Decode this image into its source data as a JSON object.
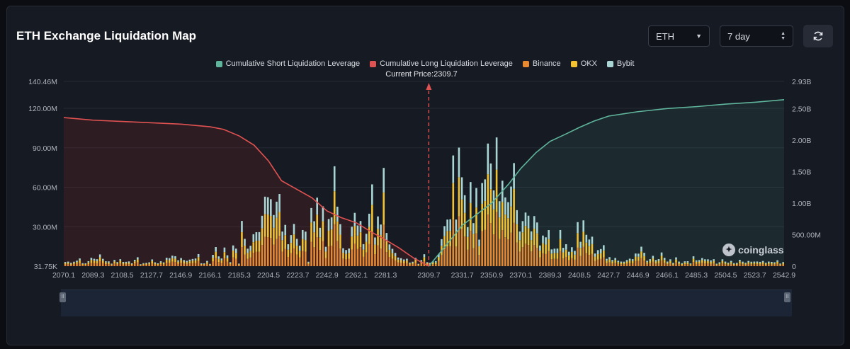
{
  "header": {
    "title": "ETH Exchange Liquidation Map",
    "coin_select": "ETH",
    "range_select": "7 day"
  },
  "brand": {
    "name": "coinglass"
  },
  "icons": {
    "refresh": "refresh-icon",
    "caret": "chevron-down-icon",
    "updown": "updown-arrows-icon"
  },
  "chart_data": {
    "type": "bar",
    "title": "",
    "xlabel": "",
    "ylabel": "",
    "current_price": 2309.7,
    "current_price_label": "Current Price:2309.7",
    "legend_placement": "top-center",
    "grid": true,
    "left_axis": {
      "min": 0,
      "max": 140.46,
      "ticks": [
        "31.75K",
        "30.00M",
        "60.00M",
        "90.00M",
        "120.00M",
        "140.46M"
      ],
      "tick_values": [
        0,
        30,
        60,
        90,
        120,
        140.46
      ]
    },
    "right_axis": {
      "min": 0,
      "max": 2.93,
      "ticks": [
        "0",
        "500.00M",
        "1.00B",
        "1.50B",
        "2.00B",
        "2.50B",
        "2.93B"
      ],
      "tick_values": [
        0,
        0.5,
        1.0,
        1.5,
        2.0,
        2.5,
        2.93
      ]
    },
    "x_range": [
      2070.1,
      2542.9
    ],
    "x_tick_labels": [
      "2070.1",
      "2089.3",
      "2108.5",
      "2127.7",
      "2146.9",
      "2166.1",
      "2185.3",
      "2204.5",
      "2223.7",
      "2242.9",
      "2262.1",
      "2281.3",
      "2309.7",
      "2331.7",
      "2350.9",
      "2370.1",
      "2389.3",
      "2408.5",
      "2427.7",
      "2446.9",
      "2466.1",
      "2485.3",
      "2504.5",
      "2523.7",
      "2542.9"
    ],
    "x_tick_values": [
      2070.1,
      2089.3,
      2108.5,
      2127.7,
      2146.9,
      2166.1,
      2185.3,
      2204.5,
      2223.7,
      2242.9,
      2262.1,
      2281.3,
      2309.7,
      2331.7,
      2350.9,
      2370.1,
      2389.3,
      2408.5,
      2427.7,
      2446.9,
      2466.1,
      2485.3,
      2504.5,
      2523.7,
      2542.9
    ],
    "series": [
      {
        "name": "Cumulative Short Liquidation Leverage",
        "color": "#5fb49c",
        "kind": "line",
        "axis": "right",
        "points": [
          [
            2309.7,
            0
          ],
          [
            2320,
            0.3
          ],
          [
            2331.7,
            0.65
          ],
          [
            2350.9,
            1.0
          ],
          [
            2362,
            1.3
          ],
          [
            2370.1,
            1.55
          ],
          [
            2380,
            1.8
          ],
          [
            2389.3,
            1.98
          ],
          [
            2400,
            2.1
          ],
          [
            2408.5,
            2.2
          ],
          [
            2418,
            2.3
          ],
          [
            2427.7,
            2.38
          ],
          [
            2446.9,
            2.45
          ],
          [
            2466.1,
            2.5
          ],
          [
            2485.3,
            2.53
          ],
          [
            2504.5,
            2.57
          ],
          [
            2523.7,
            2.6
          ],
          [
            2542.9,
            2.64
          ]
        ]
      },
      {
        "name": "Cumulative Long Liquidation Leverage",
        "color": "#e05252",
        "kind": "line",
        "axis": "left",
        "points": [
          [
            2070.1,
            113
          ],
          [
            2089.3,
            111
          ],
          [
            2108.5,
            110
          ],
          [
            2127.7,
            109
          ],
          [
            2146.9,
            108
          ],
          [
            2166.1,
            106
          ],
          [
            2175,
            104
          ],
          [
            2185.3,
            99
          ],
          [
            2195,
            92
          ],
          [
            2204.5,
            80
          ],
          [
            2213,
            65
          ],
          [
            2223.7,
            58
          ],
          [
            2233,
            52
          ],
          [
            2242.9,
            42
          ],
          [
            2252,
            37
          ],
          [
            2262.1,
            33
          ],
          [
            2272,
            26
          ],
          [
            2281.3,
            20
          ],
          [
            2290,
            14
          ],
          [
            2300,
            6
          ],
          [
            2309.7,
            0
          ]
        ]
      },
      {
        "name": "Binance",
        "color": "#e8892f",
        "kind": "bar"
      },
      {
        "name": "OKX",
        "color": "#f2c230",
        "kind": "bar"
      },
      {
        "name": "Bybit",
        "color": "#a9d6d4",
        "kind": "bar"
      }
    ],
    "peaks": [
      [
        2073,
        6
      ],
      [
        2080,
        8
      ],
      [
        2086,
        5
      ],
      [
        2093,
        11
      ],
      [
        2100,
        4
      ],
      [
        2110,
        5
      ],
      [
        2118,
        10
      ],
      [
        2125,
        4
      ],
      [
        2134,
        6
      ],
      [
        2142,
        12
      ],
      [
        2150,
        8
      ],
      [
        2158,
        13
      ],
      [
        2164,
        6
      ],
      [
        2170,
        18
      ],
      [
        2176,
        20
      ],
      [
        2182,
        30
      ],
      [
        2188,
        48
      ],
      [
        2192,
        32
      ],
      [
        2196,
        44
      ],
      [
        2200,
        58
      ],
      [
        2203,
        90
      ],
      [
        2206,
        80
      ],
      [
        2209,
        95
      ],
      [
        2212,
        70
      ],
      [
        2216,
        40
      ],
      [
        2220,
        50
      ],
      [
        2224,
        35
      ],
      [
        2228,
        55
      ],
      [
        2233,
        62
      ],
      [
        2236,
        75
      ],
      [
        2240,
        50
      ],
      [
        2244,
        44
      ],
      [
        2248,
        85
      ],
      [
        2252,
        35
      ],
      [
        2256,
        25
      ],
      [
        2260,
        55
      ],
      [
        2264,
        70
      ],
      [
        2268,
        30
      ],
      [
        2272,
        85
      ],
      [
        2276,
        40
      ],
      [
        2280,
        88
      ],
      [
        2284,
        30
      ],
      [
        2288,
        14
      ],
      [
        2294,
        8
      ],
      [
        2298,
        5
      ],
      [
        2303,
        3
      ],
      [
        2306,
        12
      ],
      [
        2310,
        2
      ],
      [
        2314,
        6
      ],
      [
        2318,
        22
      ],
      [
        2322,
        65
      ],
      [
        2326,
        95
      ],
      [
        2330,
        108
      ],
      [
        2333,
        90
      ],
      [
        2337,
        70
      ],
      [
        2341,
        62
      ],
      [
        2345,
        75
      ],
      [
        2348,
        105
      ],
      [
        2351,
        108
      ],
      [
        2355,
        122
      ],
      [
        2358,
        110
      ],
      [
        2361,
        75
      ],
      [
        2365,
        90
      ],
      [
        2368,
        60
      ],
      [
        2372,
        58
      ],
      [
        2376,
        60
      ],
      [
        2380,
        65
      ],
      [
        2384,
        30
      ],
      [
        2388,
        38
      ],
      [
        2392,
        25
      ],
      [
        2396,
        28
      ],
      [
        2400,
        22
      ],
      [
        2404,
        25
      ],
      [
        2408,
        38
      ],
      [
        2412,
        42
      ],
      [
        2416,
        30
      ],
      [
        2420,
        25
      ],
      [
        2424,
        20
      ],
      [
        2428,
        12
      ],
      [
        2432,
        10
      ],
      [
        2436,
        6
      ],
      [
        2442,
        9
      ],
      [
        2446,
        18
      ],
      [
        2450,
        22
      ],
      [
        2456,
        10
      ],
      [
        2462,
        12
      ],
      [
        2468,
        8
      ],
      [
        2472,
        7
      ],
      [
        2478,
        6
      ],
      [
        2484,
        9
      ],
      [
        2490,
        10
      ],
      [
        2496,
        8
      ],
      [
        2502,
        6
      ],
      [
        2508,
        5
      ],
      [
        2514,
        7
      ],
      [
        2520,
        6
      ],
      [
        2526,
        5
      ],
      [
        2532,
        6
      ],
      [
        2538,
        5
      ],
      [
        2542,
        4
      ]
    ]
  }
}
